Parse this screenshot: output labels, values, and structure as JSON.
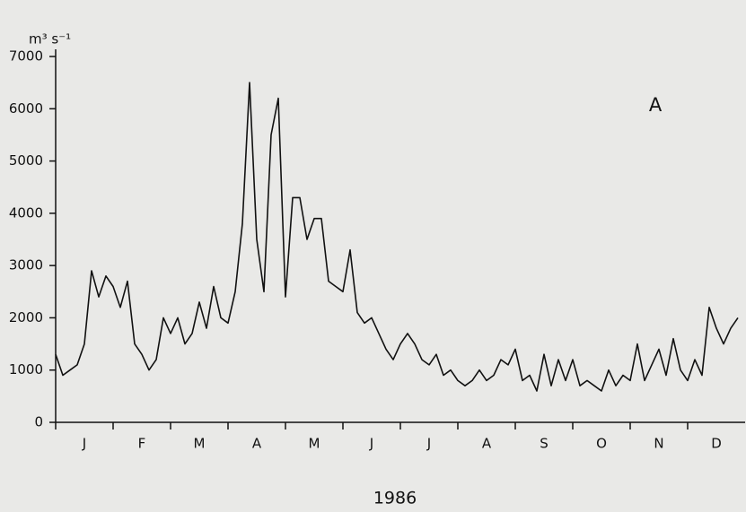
{
  "chart_data": {
    "type": "line",
    "y_label": "m³ s⁻¹",
    "x_label": "1986",
    "annotation": "A",
    "categories": [
      "J",
      "F",
      "M",
      "A",
      "M",
      "J",
      "J",
      "A",
      "S",
      "O",
      "N",
      "D"
    ],
    "xlim": [
      0,
      12
    ],
    "ylim": [
      0,
      7000
    ],
    "yticks": [
      0,
      1000,
      2000,
      3000,
      4000,
      5000,
      6000,
      7000
    ],
    "series": [
      {
        "color": "#111111",
        "x": [
          0,
          0.125,
          0.25,
          0.375,
          0.5,
          0.625,
          0.75,
          0.875,
          1,
          1.125,
          1.25,
          1.375,
          1.5,
          1.625,
          1.75,
          1.875,
          2,
          2.125,
          2.25,
          2.375,
          2.5,
          2.625,
          2.75,
          2.875,
          3,
          3.125,
          3.25,
          3.375,
          3.5,
          3.625,
          3.75,
          3.875,
          4,
          4.125,
          4.25,
          4.375,
          4.5,
          4.625,
          4.75,
          4.875,
          5,
          5.125,
          5.25,
          5.375,
          5.5,
          5.625,
          5.75,
          5.875,
          6,
          6.125,
          6.25,
          6.375,
          6.5,
          6.625,
          6.75,
          6.875,
          7,
          7.125,
          7.25,
          7.375,
          7.5,
          7.625,
          7.75,
          7.875,
          8,
          8.125,
          8.25,
          8.375,
          8.5,
          8.625,
          8.75,
          8.875,
          9,
          9.125,
          9.25,
          9.375,
          9.5,
          9.625,
          9.75,
          9.875,
          10,
          10.125,
          10.25,
          10.375,
          10.5,
          10.625,
          10.75,
          10.875,
          11,
          11.125,
          11.25,
          11.375,
          11.5,
          11.625,
          11.75,
          11.875
        ],
        "values": [
          1300,
          900,
          1000,
          1100,
          1500,
          2900,
          2400,
          2800,
          2600,
          2200,
          2700,
          1500,
          1300,
          1000,
          1200,
          2000,
          1700,
          2000,
          1500,
          1700,
          2300,
          1800,
          2600,
          2000,
          1900,
          2500,
          3800,
          6500,
          3500,
          2500,
          5500,
          6200,
          2400,
          4300,
          4300,
          3500,
          3900,
          3900,
          2700,
          2600,
          2500,
          3300,
          2100,
          1900,
          2000,
          1700,
          1400,
          1200,
          1500,
          1700,
          1500,
          1200,
          1100,
          1300,
          900,
          1000,
          800,
          700,
          800,
          1000,
          800,
          900,
          1200,
          1100,
          1400,
          800,
          900,
          600,
          1300,
          700,
          1200,
          800,
          1200,
          700,
          800,
          700,
          600,
          1000,
          700,
          900,
          800,
          1500,
          800,
          1100,
          1400,
          900,
          1600,
          1000,
          800,
          1200,
          900,
          2200,
          1800,
          1500,
          1800,
          2000
        ]
      }
    ]
  }
}
